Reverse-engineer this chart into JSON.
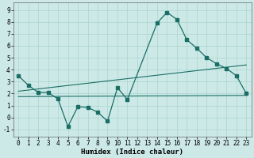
{
  "xlabel": "Humidex (Indice chaleur)",
  "background_color": "#cce9e7",
  "grid_color": "#aad4d0",
  "line_color": "#1a6e65",
  "xlim": [
    -0.5,
    23.5
  ],
  "ylim": [
    -1.6,
    9.6
  ],
  "xticks": [
    0,
    1,
    2,
    3,
    4,
    5,
    6,
    7,
    8,
    9,
    10,
    11,
    12,
    13,
    14,
    15,
    16,
    17,
    18,
    19,
    20,
    21,
    22,
    23
  ],
  "yticks": [
    -1,
    0,
    1,
    2,
    3,
    4,
    5,
    6,
    7,
    8,
    9
  ],
  "series1_x": [
    0,
    1,
    2,
    3,
    4,
    5,
    6,
    7,
    8,
    9,
    10,
    11,
    14,
    15,
    16,
    17,
    18,
    19,
    20,
    21,
    22,
    23
  ],
  "series1_y": [
    3.5,
    2.7,
    2.1,
    2.1,
    1.55,
    -0.75,
    0.9,
    0.85,
    0.45,
    -0.3,
    2.5,
    1.5,
    7.9,
    8.8,
    8.2,
    6.5,
    5.8,
    5.0,
    4.5,
    4.1,
    3.5,
    2.0
  ],
  "series2_x": [
    0,
    23
  ],
  "series2_y": [
    2.2,
    4.4
  ],
  "series3_x": [
    0,
    23
  ],
  "series3_y": [
    1.75,
    1.85
  ],
  "fontsize_ticks": 5.5,
  "fontsize_xlabel": 6.5
}
